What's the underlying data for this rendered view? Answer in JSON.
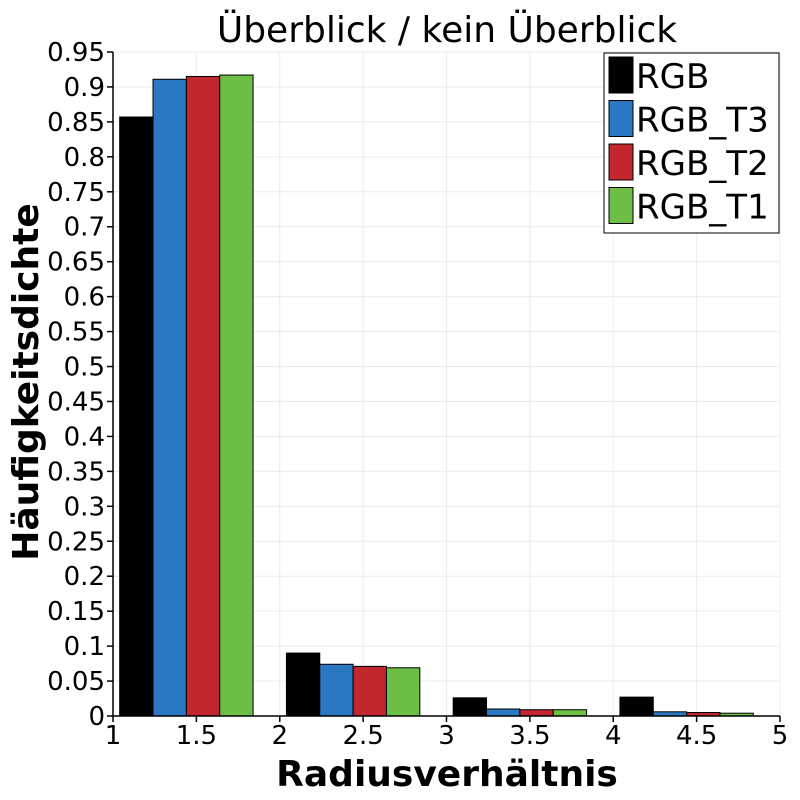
{
  "chart_data": {
    "type": "bar",
    "title": "Überblick / kein Überblick",
    "xlabel": "Radiusverhältnis",
    "ylabel": "Häufigkeitsdichte",
    "xlim": [
      1,
      5
    ],
    "ylim": [
      0,
      0.95
    ],
    "x_ticks": [
      "1",
      "1.5",
      "2",
      "2.5",
      "3",
      "3.5",
      "4",
      "4.5",
      "5"
    ],
    "y_ticks": [
      "0",
      "0.05",
      "0.1",
      "0.15",
      "0.2",
      "0.25",
      "0.3",
      "0.35",
      "0.4",
      "0.45",
      "0.5",
      "0.55",
      "0.6",
      "0.65",
      "0.7",
      "0.75",
      "0.8",
      "0.85",
      "0.9",
      "0.95"
    ],
    "bins": [
      [
        1,
        2
      ],
      [
        2,
        3
      ],
      [
        3,
        4
      ],
      [
        4,
        5
      ]
    ],
    "grid": true,
    "legend_position": "top-right",
    "series": [
      {
        "name": "RGB",
        "color": "#000000",
        "values": [
          0.857,
          0.09,
          0.026,
          0.027
        ]
      },
      {
        "name": "RGB_T3",
        "color": "#2a78c2",
        "values": [
          0.911,
          0.074,
          0.01,
          0.006
        ]
      },
      {
        "name": "RGB_T2",
        "color": "#c1272d",
        "values": [
          0.915,
          0.071,
          0.009,
          0.005
        ]
      },
      {
        "name": "RGB_T1",
        "color": "#6dbe44",
        "values": [
          0.917,
          0.069,
          0.009,
          0.004
        ]
      }
    ]
  }
}
